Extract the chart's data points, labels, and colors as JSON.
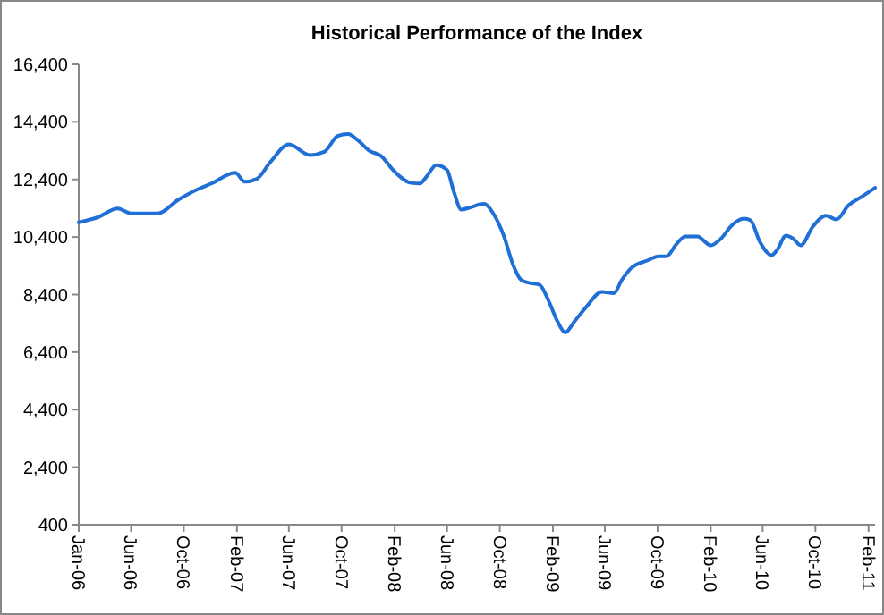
{
  "chart_data": {
    "type": "line",
    "title": "Historical Performance of the Index",
    "x": [
      "2006-01-31",
      "2006-03-15",
      "2006-05-01",
      "2006-06-01",
      "2006-08-01",
      "2006-09-19",
      "2006-11-01",
      "2006-12-04",
      "2007-01-28",
      "2007-02-19",
      "2007-03-19",
      "2007-04-19",
      "2007-06-01",
      "2007-07-19",
      "2007-08-22",
      "2007-09-22",
      "2007-10-16",
      "2007-11-07",
      "2007-12-04",
      "2008-01-01",
      "2008-01-28",
      "2008-03-10",
      "2008-03-30",
      "2008-04-16",
      "2008-05-07",
      "2008-06-01",
      "2008-06-16",
      "2008-07-04",
      "2008-07-25",
      "2008-08-25",
      "2008-09-19",
      "2008-10-10",
      "2008-11-01",
      "2008-11-20",
      "2008-12-10",
      "2009-01-01",
      "2009-01-22",
      "2009-02-12",
      "2009-03-01",
      "2009-03-22",
      "2009-04-19",
      "2009-05-25",
      "2009-06-22",
      "2009-07-10",
      "2009-08-01",
      "2009-09-07",
      "2009-10-04",
      "2009-10-22",
      "2009-11-13",
      "2009-12-04",
      "2010-01-01",
      "2010-02-01",
      "2010-02-25",
      "2010-03-22",
      "2010-04-19",
      "2010-05-04",
      "2010-05-25",
      "2010-06-22",
      "2010-07-04",
      "2010-07-25",
      "2010-08-10",
      "2010-08-28",
      "2010-09-25",
      "2010-10-25",
      "2010-11-19",
      "2010-12-16",
      "2011-01-16",
      "2011-02-16"
    ],
    "series": [
      {
        "color": "#1f6fd6",
        "values": [
          10910,
          11080,
          11390,
          11220,
          11220,
          11700,
          12050,
          12260,
          12630,
          12320,
          12420,
          13000,
          13620,
          13250,
          13360,
          13910,
          13980,
          13770,
          13400,
          13210,
          12730,
          12280,
          12260,
          12530,
          12900,
          12730,
          12010,
          11350,
          11430,
          11550,
          11140,
          10450,
          9420,
          8900,
          8800,
          8740,
          8180,
          7450,
          7080,
          7450,
          7970,
          8490,
          8450,
          8900,
          9320,
          9580,
          9730,
          9730,
          10140,
          10420,
          10420,
          10110,
          10350,
          10810,
          11040,
          10980,
          10250,
          9770,
          9940,
          10450,
          10350,
          10110,
          10760,
          11140,
          11010,
          11490,
          11800,
          12110
        ]
      }
    ],
    "xlim": [
      "2006-01-31",
      "2011-02-16"
    ],
    "xticks": [
      {
        "value": "2006-01-31",
        "label": "Jan-06"
      },
      {
        "value": "2006-06-01",
        "label": "Jun-06"
      },
      {
        "value": "2006-10-01",
        "label": "Oct-06"
      },
      {
        "value": "2007-02-01",
        "label": "Feb-07"
      },
      {
        "value": "2007-06-01",
        "label": "Jun-07"
      },
      {
        "value": "2007-10-01",
        "label": "Oct-07"
      },
      {
        "value": "2008-02-01",
        "label": "Feb-08"
      },
      {
        "value": "2008-06-01",
        "label": "Jun-08"
      },
      {
        "value": "2008-10-01",
        "label": "Oct-08"
      },
      {
        "value": "2009-02-01",
        "label": "Feb-09"
      },
      {
        "value": "2009-06-01",
        "label": "Jun-09"
      },
      {
        "value": "2009-10-01",
        "label": "Oct-09"
      },
      {
        "value": "2010-02-01",
        "label": "Feb-10"
      },
      {
        "value": "2010-06-01",
        "label": "Jun-10"
      },
      {
        "value": "2010-10-01",
        "label": "Oct-10"
      },
      {
        "value": "2011-02-01",
        "label": "Feb-11"
      }
    ],
    "ylim": [
      400,
      16400
    ],
    "yticks": [
      {
        "value": 400,
        "label": "400"
      },
      {
        "value": 2400,
        "label": "2,400"
      },
      {
        "value": 4400,
        "label": "4,400"
      },
      {
        "value": 6400,
        "label": "6,400"
      },
      {
        "value": 8400,
        "label": "8,400"
      },
      {
        "value": 10400,
        "label": "10,400"
      },
      {
        "value": 12400,
        "label": "12,400"
      },
      {
        "value": 14400,
        "label": "14,400"
      },
      {
        "value": 16400,
        "label": "16,400"
      }
    ],
    "grid": false,
    "marker": "none",
    "line_style": "solid"
  }
}
